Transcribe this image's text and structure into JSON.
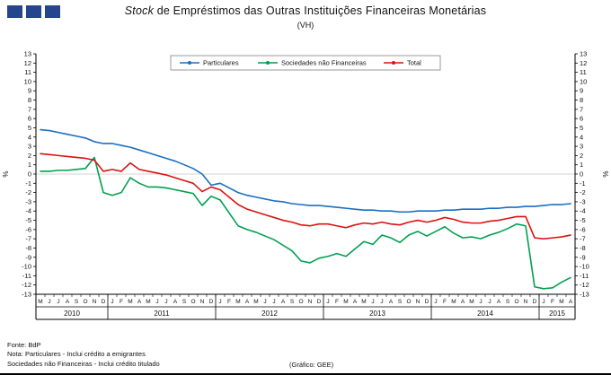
{
  "header": {
    "title_italic": "Stock",
    "title_rest": " de Empréstimos das Outras Instituições Financeiras Monetárias",
    "subtitle": "(VH)",
    "logo_color": "#25458c"
  },
  "chart_data": {
    "type": "line",
    "title": "Stock de Empréstimos das Outras Instituições Financeiras Monetárias (VH)",
    "ylabel": "%",
    "ylim": [
      -13,
      13
    ],
    "ytick_step": 1,
    "grid": false,
    "legend_position": "top-center",
    "years": [
      {
        "label": "2010",
        "months": [
          "M",
          "J",
          "J",
          "A",
          "S",
          "O",
          "N",
          "D"
        ]
      },
      {
        "label": "2011",
        "months": [
          "J",
          "F",
          "M",
          "A",
          "M",
          "J",
          "J",
          "A",
          "S",
          "O",
          "N",
          "D"
        ]
      },
      {
        "label": "2012",
        "months": [
          "J",
          "F",
          "M",
          "A",
          "M",
          "J",
          "J",
          "A",
          "S",
          "O",
          "N",
          "D"
        ]
      },
      {
        "label": "2013",
        "months": [
          "J",
          "F",
          "M",
          "A",
          "M",
          "J",
          "J",
          "A",
          "S",
          "O",
          "N",
          "D"
        ]
      },
      {
        "label": "2014",
        "months": [
          "J",
          "F",
          "M",
          "A",
          "M",
          "J",
          "J",
          "A",
          "S",
          "O",
          "N",
          "D"
        ]
      },
      {
        "label": "2015",
        "months": [
          "J",
          "F",
          "M",
          "A"
        ]
      }
    ],
    "series": [
      {
        "name": "Particulares",
        "color": "#1b6ec2",
        "values": [
          4.8,
          4.7,
          4.5,
          4.3,
          4.1,
          3.9,
          3.5,
          3.3,
          3.3,
          3.1,
          2.9,
          2.6,
          2.3,
          2.0,
          1.7,
          1.4,
          1.0,
          0.6,
          0.0,
          -1.2,
          -1.0,
          -1.5,
          -2.0,
          -2.3,
          -2.5,
          -2.7,
          -2.9,
          -3.0,
          -3.2,
          -3.3,
          -3.4,
          -3.4,
          -3.5,
          -3.6,
          -3.7,
          -3.8,
          -3.9,
          -3.9,
          -4.0,
          -4.0,
          -4.1,
          -4.1,
          -4.0,
          -4.0,
          -4.0,
          -3.9,
          -3.9,
          -3.8,
          -3.8,
          -3.8,
          -3.7,
          -3.7,
          -3.6,
          -3.6,
          -3.5,
          -3.5,
          -3.4,
          -3.3,
          -3.3,
          -3.2
        ]
      },
      {
        "name": "Sociedades não Financeiras",
        "color": "#00a050",
        "values": [
          0.3,
          0.3,
          0.4,
          0.4,
          0.5,
          0.6,
          1.8,
          -2.0,
          -2.3,
          -2.0,
          -0.4,
          -1.0,
          -1.4,
          -1.4,
          -1.5,
          -1.7,
          -1.9,
          -2.1,
          -3.4,
          -2.4,
          -2.8,
          -4.2,
          -5.6,
          -6.0,
          -6.3,
          -6.7,
          -7.1,
          -7.7,
          -8.3,
          -9.4,
          -9.6,
          -9.1,
          -8.9,
          -8.6,
          -8.9,
          -8.1,
          -7.3,
          -7.6,
          -6.6,
          -6.9,
          -7.4,
          -6.6,
          -6.2,
          -6.7,
          -6.2,
          -5.7,
          -6.4,
          -6.9,
          -6.8,
          -7.0,
          -6.6,
          -6.3,
          -5.9,
          -5.4,
          -5.6,
          -12.2,
          -12.4,
          -12.3,
          -11.7,
          -11.2
        ]
      },
      {
        "name": "Total",
        "color": "#dd1111",
        "values": [
          2.2,
          2.1,
          2.0,
          1.9,
          1.8,
          1.7,
          1.5,
          0.3,
          0.5,
          0.3,
          1.2,
          0.5,
          0.3,
          0.1,
          -0.1,
          -0.4,
          -0.7,
          -1.0,
          -1.9,
          -1.4,
          -1.7,
          -2.5,
          -3.3,
          -3.8,
          -4.1,
          -4.4,
          -4.7,
          -5.0,
          -5.2,
          -5.5,
          -5.6,
          -5.4,
          -5.4,
          -5.6,
          -5.8,
          -5.5,
          -5.3,
          -5.4,
          -5.2,
          -5.4,
          -5.5,
          -5.2,
          -5.0,
          -5.2,
          -5.0,
          -4.7,
          -4.9,
          -5.2,
          -5.3,
          -5.3,
          -5.1,
          -5.0,
          -4.8,
          -4.6,
          -4.6,
          -6.9,
          -7.0,
          -6.9,
          -6.8,
          -6.6
        ]
      }
    ]
  },
  "footer": {
    "source": "Fonte: BdP",
    "note1": "Nota: Particulares - Inclui crédito a emigrantes",
    "note2": "Sociedades não Financeiras - Inclui crédito titulado",
    "credit": "(Gráfico: GEE)"
  }
}
